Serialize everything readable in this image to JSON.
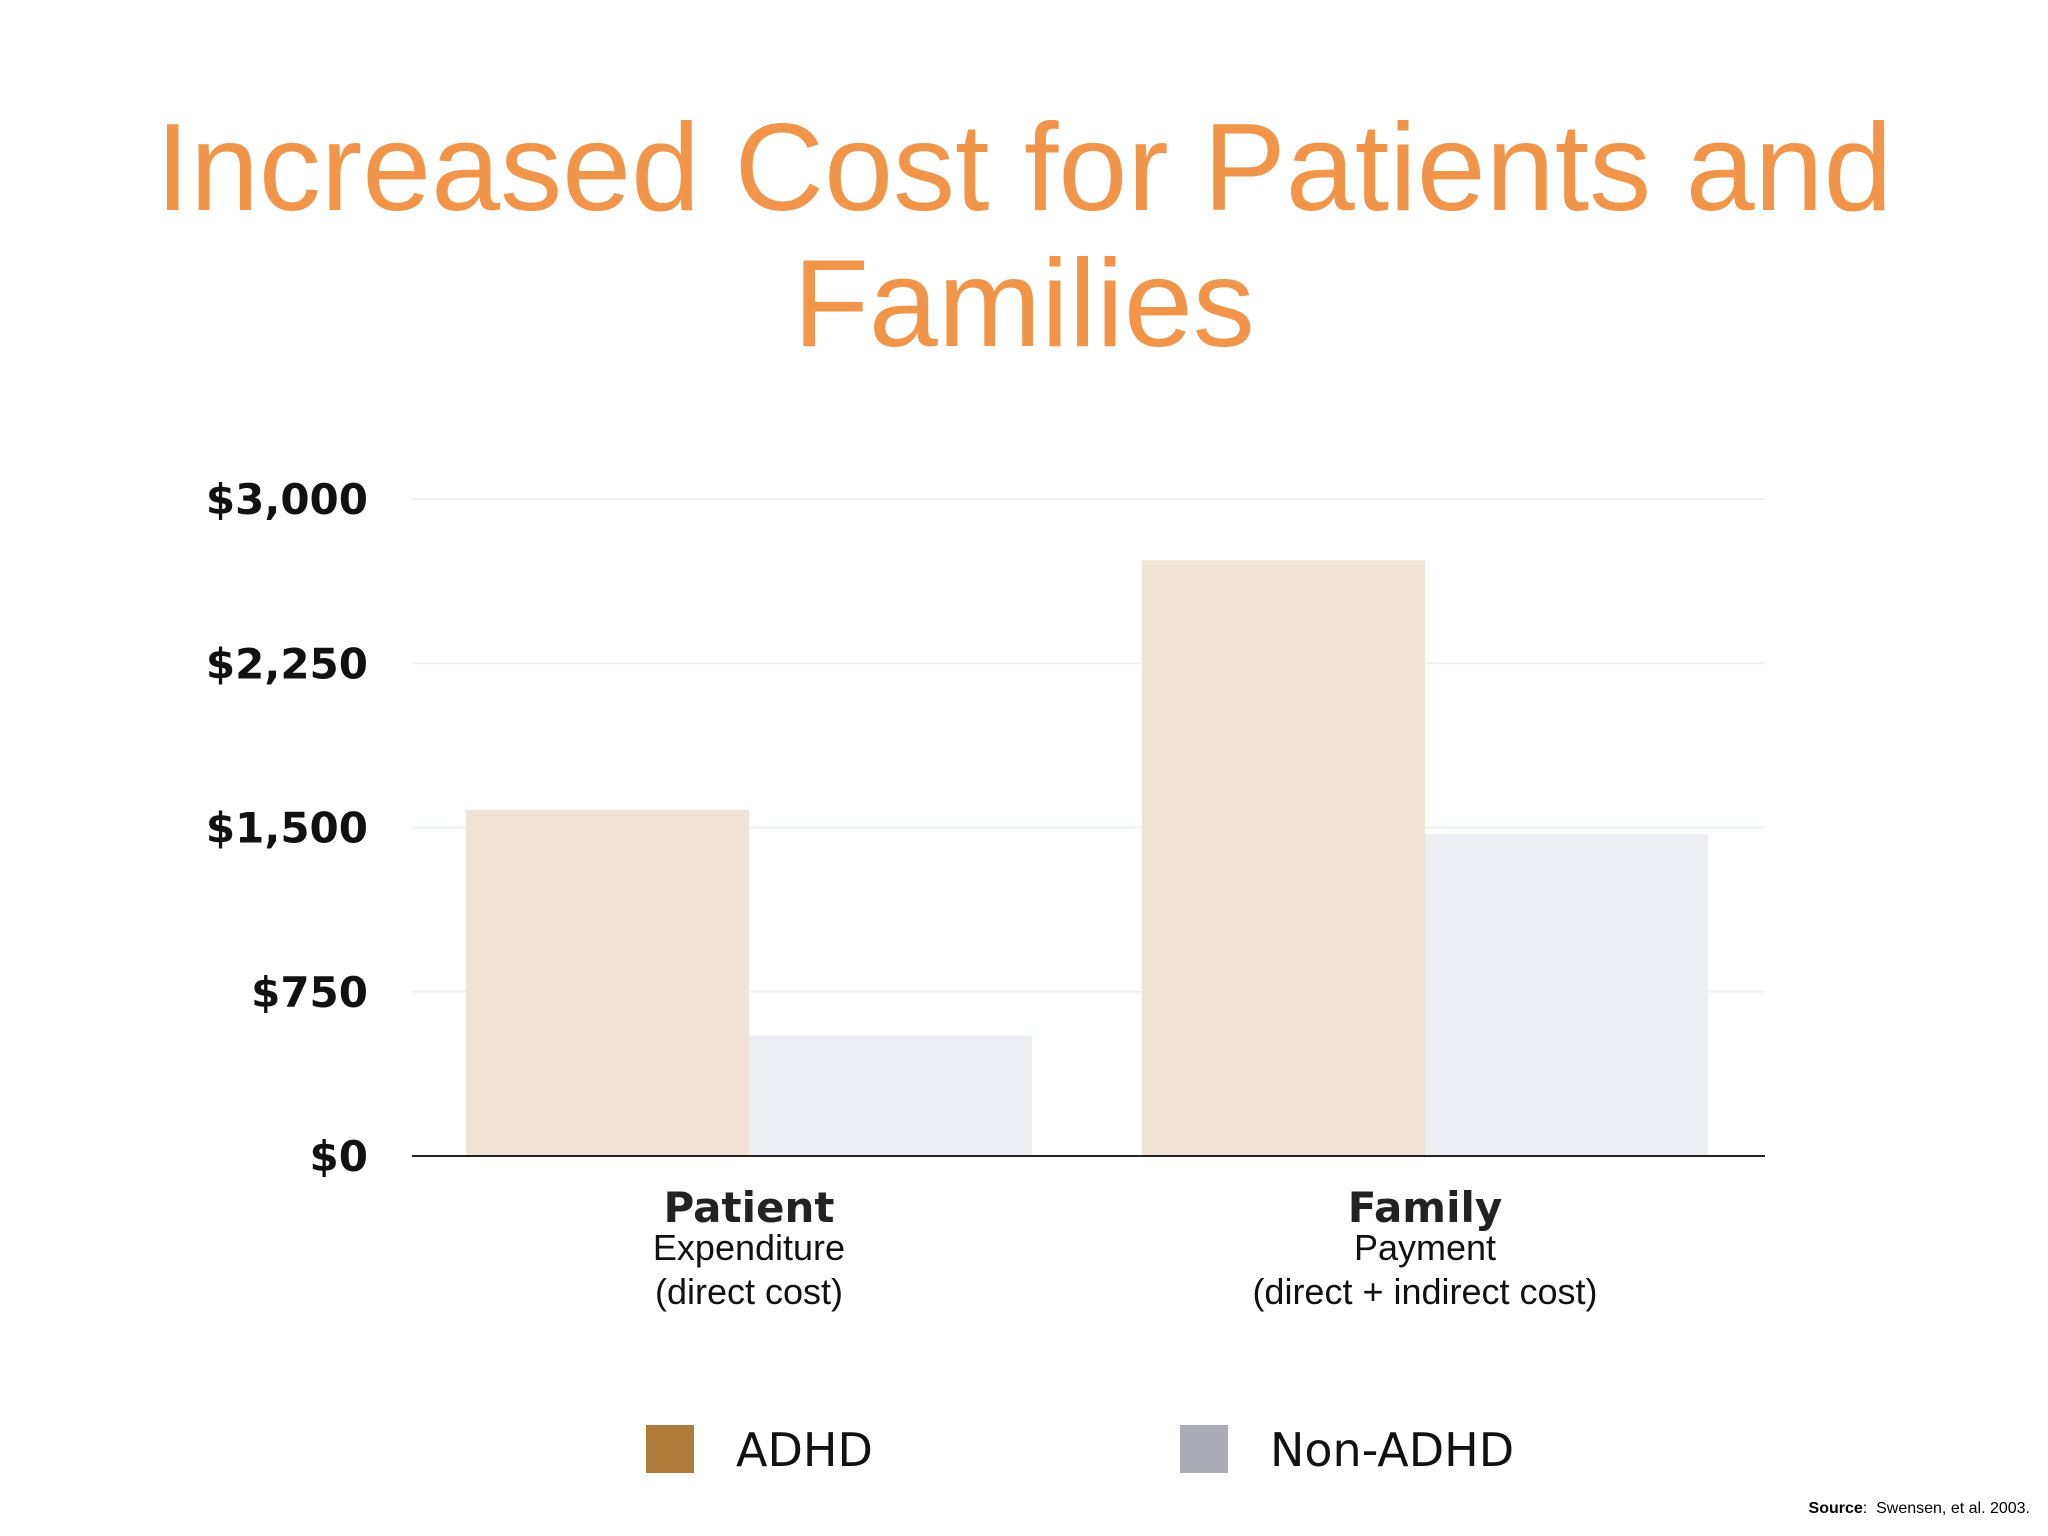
{
  "slide": {
    "title": "Increased Cost for Patients and Families"
  },
  "source": {
    "label": "Source",
    "text": "Swensen, et al. 2003."
  },
  "colors": {
    "title": "#f0954a",
    "adhd_bar": "#efe4d6",
    "adhd_swatch": "#b07a3a",
    "non_adhd_bar": "#eceef3",
    "non_adhd_swatch": "#a9abb5",
    "axis": "#222222",
    "grid": "#eef0f4"
  },
  "chart_data": {
    "type": "bar",
    "categories": [
      {
        "main": "Patient",
        "sub1": "Expenditure",
        "sub2": "(direct cost)"
      },
      {
        "main": "Family",
        "sub1": "Payment",
        "sub2": "(direct + indirect cost)"
      }
    ],
    "series": [
      {
        "name": "ADHD",
        "values": [
          1580,
          2720
        ]
      },
      {
        "name": "Non-ADHD",
        "values": [
          550,
          1470
        ]
      }
    ],
    "yticks": [
      {
        "value": 0,
        "label": "$0"
      },
      {
        "value": 750,
        "label": "$750"
      },
      {
        "value": 1500,
        "label": "$1,500"
      },
      {
        "value": 2250,
        "label": "$2,250"
      },
      {
        "value": 3000,
        "label": "$3,000"
      }
    ],
    "ylim": [
      0,
      3000
    ],
    "grid": true,
    "legend_position": "bottom"
  }
}
